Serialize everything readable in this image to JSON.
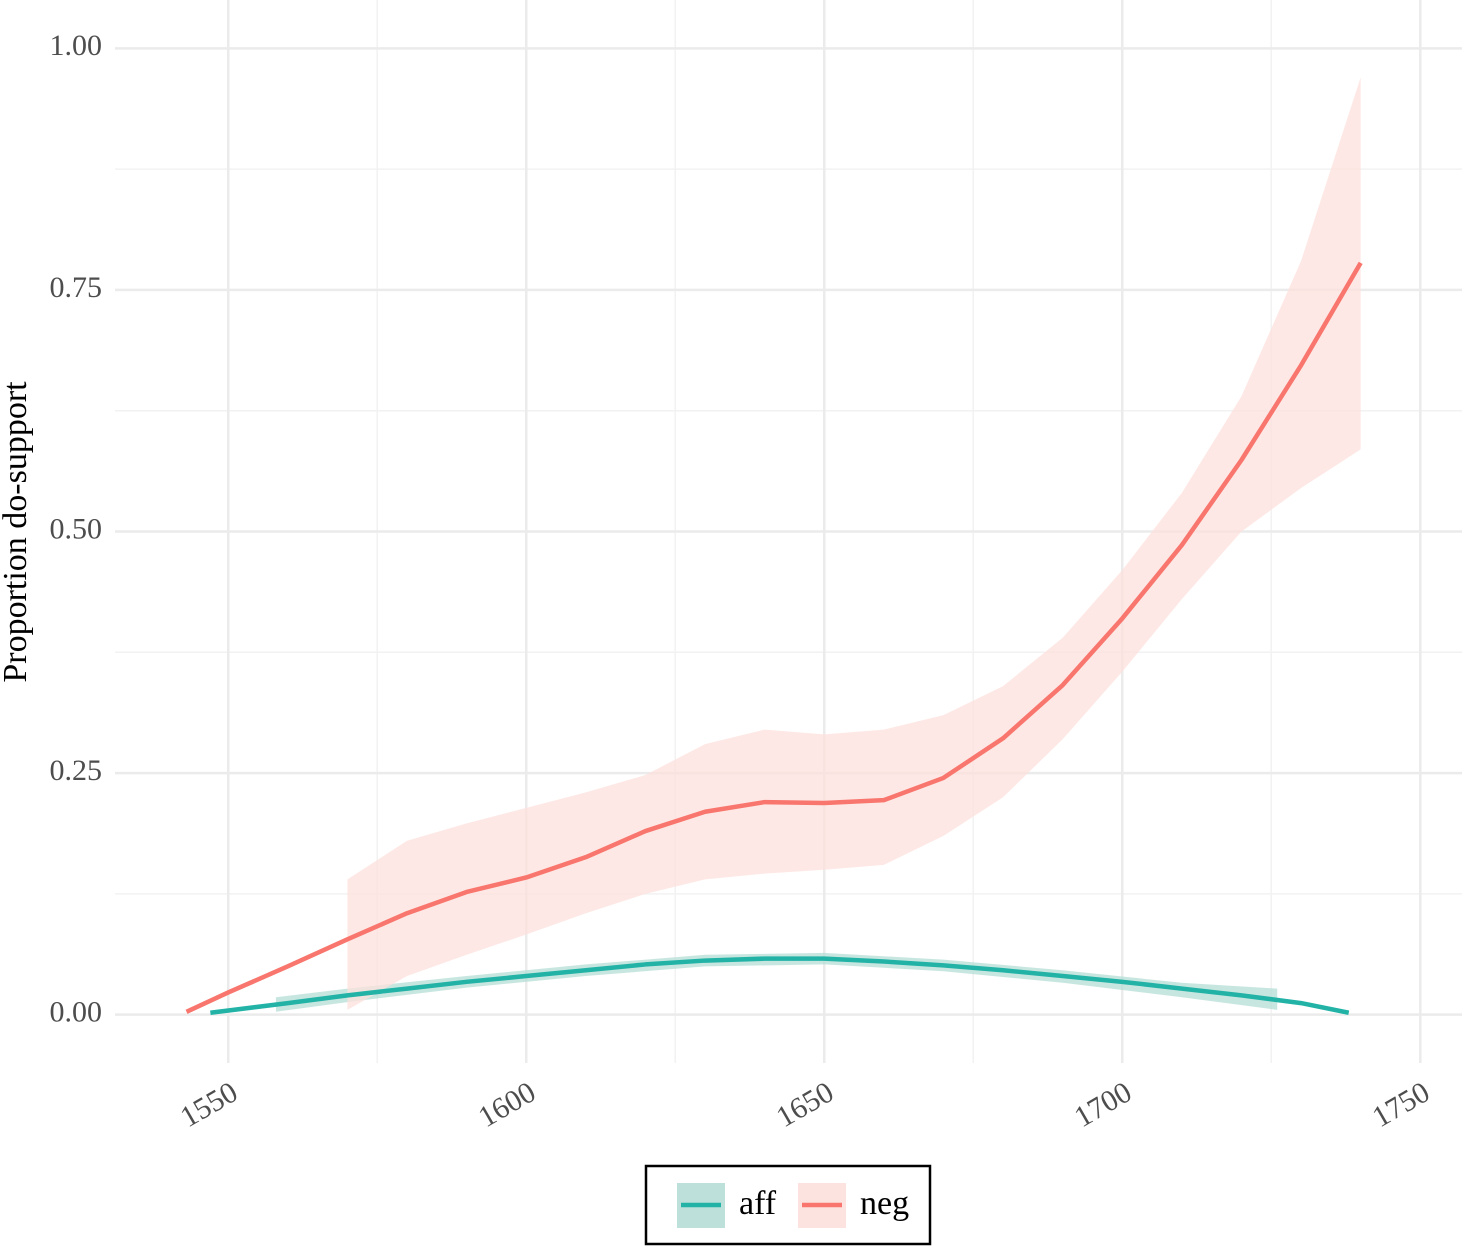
{
  "chart_data": {
    "type": "smooth",
    "y_label": "Proportion do-support",
    "xlim": [
      1531,
      1757
    ],
    "ylim": [
      -0.05,
      1.05
    ],
    "xticks": [
      1550,
      1600,
      1650,
      1700,
      1750
    ],
    "yticks": [
      {
        "value": 0,
        "label": "0.00"
      },
      0.25,
      {
        "value": 0.5,
        "label": "0.50"
      },
      0.75,
      {
        "value": 1,
        "label": "1.00"
      }
    ],
    "x_minor_ticks": [
      1575,
      1625,
      1675,
      1725
    ],
    "y_minor_ticks": [
      0.125,
      0.375,
      0.625,
      0.875
    ],
    "grid": true,
    "legend_position": "bottom",
    "series": [
      {
        "name": "aff",
        "color": "#22b3a6",
        "band_color": "#b6ddd6",
        "x": [
          1547,
          1560,
          1570,
          1580,
          1590,
          1600,
          1610,
          1620,
          1630,
          1640,
          1650,
          1660,
          1670,
          1680,
          1690,
          1700,
          1710,
          1720,
          1730,
          1738
        ],
        "values": [
          0.002,
          0.012,
          0.02,
          0.027,
          0.034,
          0.04,
          0.046,
          0.052,
          0.056,
          0.058,
          0.058,
          0.055,
          0.051,
          0.046,
          0.04,
          0.034,
          0.027,
          0.02,
          0.012,
          0.002
        ],
        "band": {
          "x": [
            1558,
            1570,
            1590,
            1610,
            1630,
            1650,
            1670,
            1690,
            1710,
            1726
          ],
          "lower": [
            0.003,
            0.013,
            0.028,
            0.04,
            0.05,
            0.052,
            0.045,
            0.033,
            0.018,
            0.005
          ],
          "upper": [
            0.018,
            0.027,
            0.04,
            0.052,
            0.062,
            0.064,
            0.057,
            0.046,
            0.033,
            0.027
          ]
        }
      },
      {
        "name": "neg",
        "color": "#f8766d",
        "band_color": "#fde0dc",
        "x": [
          1543,
          1550,
          1560,
          1570,
          1580,
          1590,
          1600,
          1610,
          1620,
          1630,
          1640,
          1650,
          1660,
          1670,
          1680,
          1690,
          1700,
          1710,
          1720,
          1730,
          1740
        ],
        "values": [
          0.003,
          0.023,
          0.05,
          0.078,
          0.105,
          0.127,
          0.142,
          0.163,
          0.19,
          0.21,
          0.22,
          0.219,
          0.222,
          0.245,
          0.286,
          0.341,
          0.41,
          0.486,
          0.574,
          0.672,
          0.778
        ],
        "band": {
          "x": [
            1570,
            1580,
            1590,
            1600,
            1610,
            1620,
            1630,
            1640,
            1650,
            1660,
            1670,
            1680,
            1690,
            1700,
            1710,
            1720,
            1730,
            1740
          ],
          "lower": [
            0.005,
            0.04,
            0.062,
            0.083,
            0.105,
            0.125,
            0.14,
            0.146,
            0.15,
            0.155,
            0.185,
            0.225,
            0.285,
            0.355,
            0.43,
            0.5,
            0.545,
            0.585
          ],
          "upper": [
            0.14,
            0.18,
            0.198,
            0.214,
            0.23,
            0.248,
            0.28,
            0.295,
            0.29,
            0.295,
            0.31,
            0.34,
            0.39,
            0.46,
            0.54,
            0.64,
            0.78,
            0.97
          ]
        }
      }
    ]
  }
}
